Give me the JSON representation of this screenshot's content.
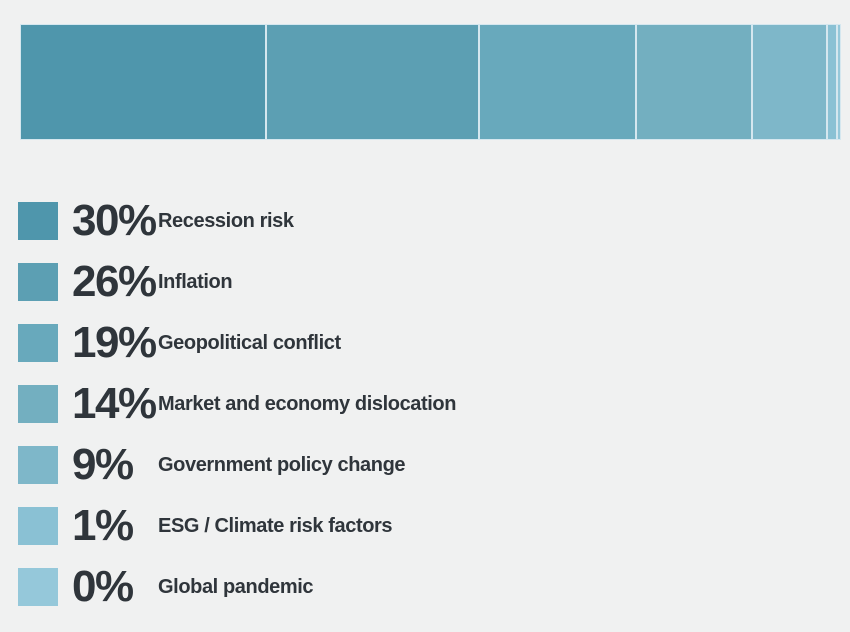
{
  "background_color": "#f0f1f1",
  "text_color": "#2f353b",
  "separator_color": "#d5e7ef",
  "chart_data": {
    "type": "bar",
    "variant": "horizontal-stacked-single-bar",
    "title": "",
    "xlabel": "",
    "ylabel": "",
    "axis": "none",
    "grid": false,
    "legend_position": "below-left",
    "categories": [
      "Recession risk",
      "Inflation",
      "Geopolitical conflict",
      "Market and economy dislocation",
      "Government policy change",
      "ESG / Climate risk factors",
      "Global pandemic"
    ],
    "values": [
      30,
      26,
      19,
      14,
      9,
      1,
      0
    ],
    "value_labels": [
      "30%",
      "26%",
      "19%",
      "14%",
      "9%",
      "1%",
      "0%"
    ],
    "colors": [
      "#4f96ac",
      "#5c9fb3",
      "#68a9bc",
      "#73afc0",
      "#7eb7c9",
      "#8ac1d4",
      "#95c8da"
    ],
    "total": 99
  }
}
